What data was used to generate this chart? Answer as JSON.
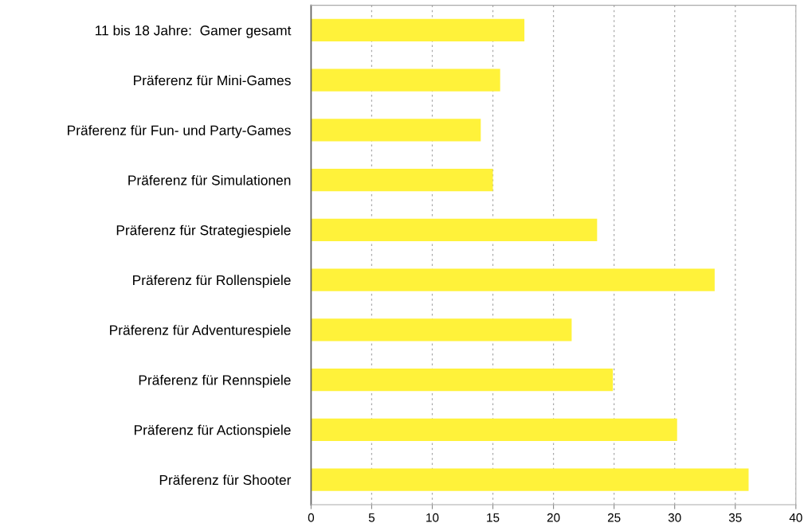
{
  "chart_data": {
    "type": "bar",
    "orientation": "horizontal",
    "categories": [
      "11 bis 18 Jahre:  Gamer gesamt",
      "Präferenz für Mini-Games",
      "Präferenz für Fun- und Party-Games",
      "Präferenz für Simulationen",
      "Präferenz für Strategiespiele",
      "Präferenz für Rollenspiele",
      "Präferenz für Adventurespiele",
      "Präferenz für Rennspiele",
      "Präferenz für Actionspiele",
      "Präferenz für Shooter"
    ],
    "values": [
      17.6,
      15.6,
      14.0,
      15.0,
      23.6,
      33.3,
      21.5,
      24.9,
      30.2,
      36.1
    ],
    "color": "#fff23a",
    "xlim": [
      0,
      40
    ],
    "xticks": [
      0,
      5,
      10,
      15,
      20,
      25,
      30,
      35,
      40
    ],
    "grid": "x"
  }
}
